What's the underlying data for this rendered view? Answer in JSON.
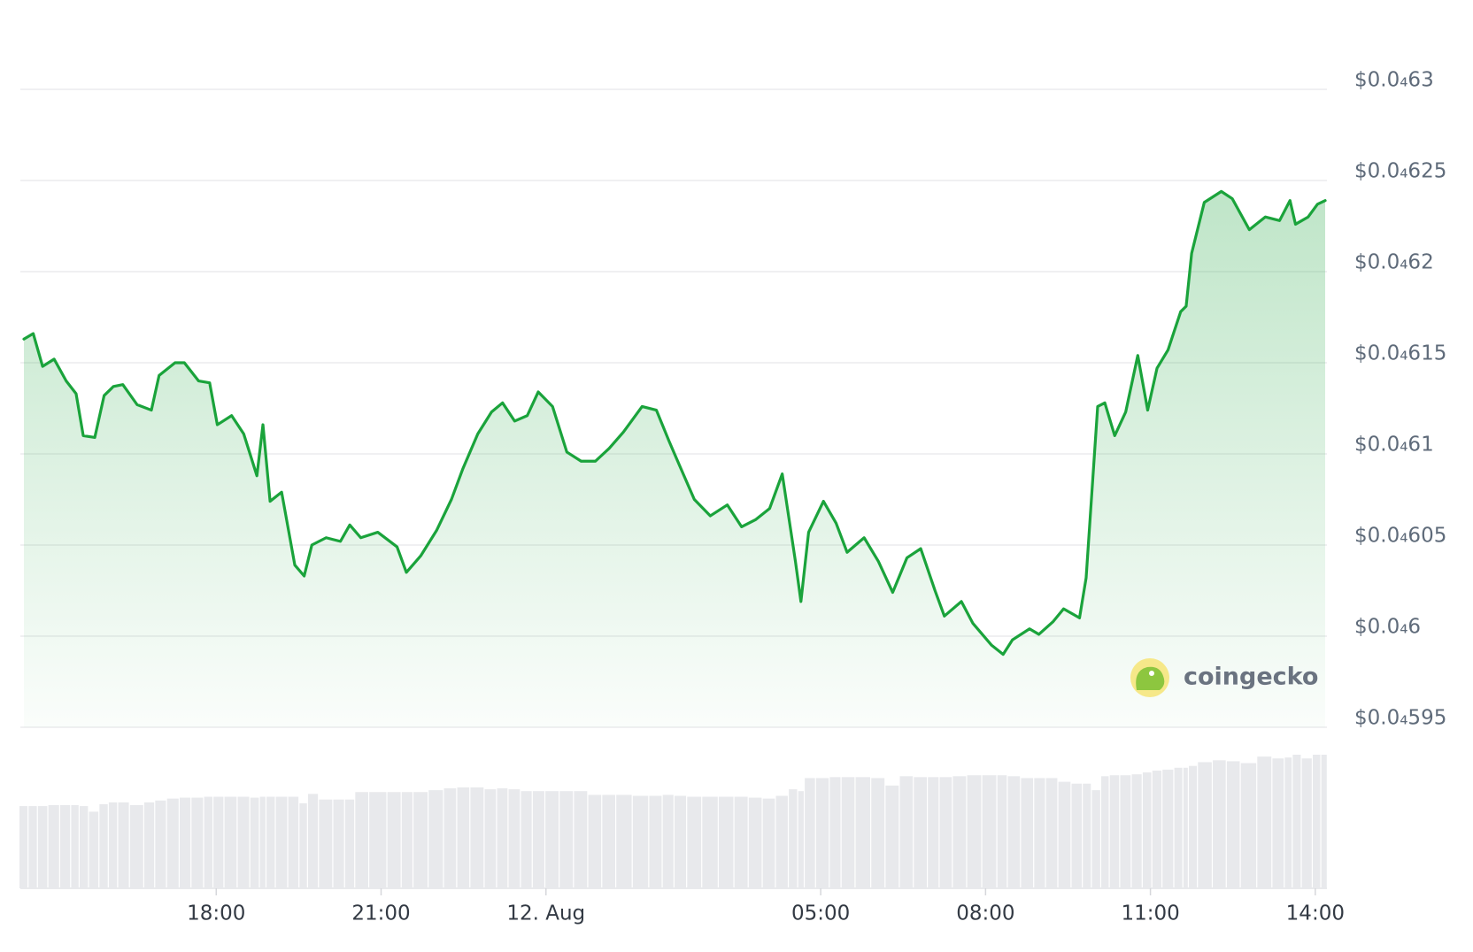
{
  "chart_data": {
    "type": "line",
    "watermark": "coingecko",
    "x": [
      14.5,
      14.67,
      14.84,
      15.05,
      15.27,
      15.45,
      15.58,
      15.79,
      15.96,
      16.13,
      16.3,
      16.56,
      16.82,
      16.96,
      17.25,
      17.42,
      17.68,
      17.88,
      18.02,
      18.28,
      18.5,
      18.74,
      18.85,
      18.98,
      19.19,
      19.43,
      19.6,
      19.74,
      20.0,
      20.26,
      20.43,
      20.63,
      20.94,
      21.29,
      21.46,
      21.72,
      22.01,
      22.28,
      22.49,
      22.76,
      23.01,
      23.21,
      23.43,
      23.66,
      23.86,
      24.12,
      24.38,
      24.64,
      24.9,
      25.15,
      25.41,
      25.75,
      26.01,
      26.24,
      26.44,
      26.7,
      26.99,
      27.3,
      27.56,
      27.82,
      28.07,
      28.3,
      28.54,
      28.64,
      28.78,
      29.05,
      29.28,
      29.48,
      29.79,
      30.05,
      30.31,
      30.57,
      30.82,
      31.08,
      31.25,
      31.56,
      31.77,
      32.11,
      32.32,
      32.49,
      32.8,
      32.97,
      33.23,
      33.42,
      33.71,
      33.83,
      34.04,
      34.17,
      34.35,
      34.55,
      34.77,
      34.95,
      35.12,
      35.32,
      35.55,
      35.65,
      35.75,
      35.98,
      36.29,
      36.49,
      36.8,
      37.09,
      37.35,
      37.54,
      37.64,
      37.87,
      38.04,
      38.18
    ],
    "series": [
      {
        "color": "#1aa33b",
        "values": [
          4.6163e-05,
          4.6166e-05,
          4.6148e-05,
          4.6152e-05,
          4.614e-05,
          4.6133e-05,
          4.611e-05,
          4.6109e-05,
          4.6132e-05,
          4.6137e-05,
          4.6138e-05,
          4.6127e-05,
          4.6124e-05,
          4.6143e-05,
          4.615e-05,
          4.615e-05,
          4.614e-05,
          4.6139e-05,
          4.6116e-05,
          4.6121e-05,
          4.6111e-05,
          4.6088e-05,
          4.6116e-05,
          4.6074e-05,
          4.6079e-05,
          4.6039e-05,
          4.6033e-05,
          4.605e-05,
          4.6054e-05,
          4.6052e-05,
          4.6061e-05,
          4.6054e-05,
          4.6057e-05,
          4.6049e-05,
          4.6035e-05,
          4.6044e-05,
          4.6058e-05,
          4.6075e-05,
          4.6092e-05,
          4.6111e-05,
          4.6123e-05,
          4.6128e-05,
          4.6118e-05,
          4.6121e-05,
          4.6134e-05,
          4.6126e-05,
          4.6101e-05,
          4.6096e-05,
          4.6096e-05,
          4.6103e-05,
          4.6112e-05,
          4.6126e-05,
          4.6124e-05,
          4.6107e-05,
          4.6093e-05,
          4.6075e-05,
          4.6066e-05,
          4.6072e-05,
          4.606e-05,
          4.6064e-05,
          4.607e-05,
          4.6089e-05,
          4.6041e-05,
          4.6019e-05,
          4.6057e-05,
          4.6074e-05,
          4.6062e-05,
          4.6046e-05,
          4.6054e-05,
          4.6041e-05,
          4.6024e-05,
          4.6043e-05,
          4.6048e-05,
          4.6025e-05,
          4.6011e-05,
          4.6019e-05,
          4.6007e-05,
          4.5995e-05,
          4.599e-05,
          4.5998e-05,
          4.6004e-05,
          4.6001e-05,
          4.6008e-05,
          4.6015e-05,
          4.601e-05,
          4.6032e-05,
          4.6126e-05,
          4.6128e-05,
          4.611e-05,
          4.6123e-05,
          4.6154e-05,
          4.6124e-05,
          4.6147e-05,
          4.6157e-05,
          4.6178e-05,
          4.6181e-05,
          4.621e-05,
          4.6238e-05,
          4.6244e-05,
          4.624e-05,
          4.6223e-05,
          4.623e-05,
          4.6228e-05,
          4.6239e-05,
          4.6226e-05,
          4.623e-05,
          4.6237e-05,
          4.6239e-05
        ]
      }
    ],
    "volume": [
      88,
      88,
      88,
      89,
      89,
      89,
      88,
      82,
      90,
      92,
      92,
      89,
      92,
      94,
      96,
      97,
      97,
      98,
      98,
      98,
      98,
      97,
      98,
      98,
      98,
      98,
      91,
      101,
      95,
      95,
      95,
      103,
      103,
      103,
      103,
      103,
      105,
      107,
      108,
      108,
      106,
      107,
      106,
      104,
      104,
      104,
      104,
      104,
      100,
      100,
      100,
      99,
      99,
      100,
      99,
      98,
      98,
      98,
      98,
      97,
      96,
      99,
      106,
      104,
      118,
      118,
      119,
      119,
      119,
      118,
      110,
      120,
      119,
      119,
      119,
      120,
      121,
      121,
      121,
      120,
      118,
      118,
      118,
      114,
      112,
      112,
      105,
      120,
      121,
      121,
      122,
      124,
      126,
      127,
      129,
      129,
      131,
      135,
      137,
      136,
      134,
      141,
      139,
      140,
      143,
      139,
      143,
      143
    ],
    "volume_color": "#e8e9ec",
    "xlim": [
      14.5,
      38.18
    ],
    "xticks": [
      {
        "value": 18,
        "label": "18:00"
      },
      {
        "value": 21,
        "label": "21:00"
      },
      {
        "value": 24,
        "label": "12. Aug"
      },
      {
        "value": 29,
        "label": "05:00"
      },
      {
        "value": 32,
        "label": "08:00"
      },
      {
        "value": 35,
        "label": "11:00"
      },
      {
        "value": 38,
        "label": "14:00"
      }
    ],
    "ylim": [
      4.595e-05,
      4.63e-05
    ],
    "yticks": [
      {
        "value": 4.595e-05,
        "label": "$0.0₄595"
      },
      {
        "value": 4.6e-05,
        "label": "$0.0₄6"
      },
      {
        "value": 4.605e-05,
        "label": "$0.0₄605"
      },
      {
        "value": 4.61e-05,
        "label": "$0.0₄61"
      },
      {
        "value": 4.615e-05,
        "label": "$0.0₄615"
      },
      {
        "value": 4.62e-05,
        "label": "$0.0₄62"
      },
      {
        "value": 4.625e-05,
        "label": "$0.0₄625"
      },
      {
        "value": 4.63e-05,
        "label": "$0.0₄63"
      }
    ],
    "grid": true
  }
}
